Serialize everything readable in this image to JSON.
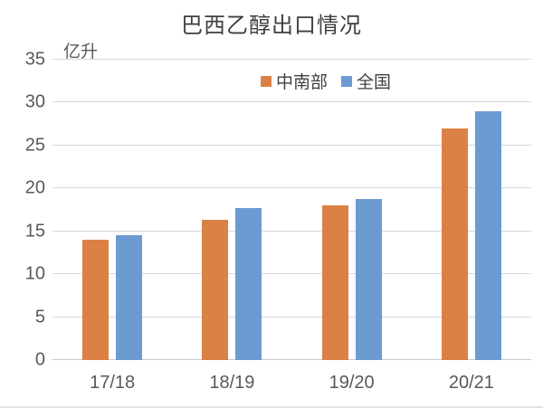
{
  "chart": {
    "title": "巴西乙醇出口情况",
    "unit_label": "亿升"
  },
  "chart_data": {
    "type": "bar",
    "title": "巴西乙醇出口情况",
    "xlabel": "",
    "ylabel": "亿升",
    "categories": [
      "17/18",
      "18/19",
      "19/20",
      "20/21"
    ],
    "series": [
      {
        "name": "中南部",
        "color": "#DC8145",
        "values": [
          14.0,
          16.3,
          18.0,
          27.0
        ]
      },
      {
        "name": "全国",
        "color": "#6C9BD2",
        "values": [
          14.5,
          17.7,
          18.8,
          29.0
        ]
      }
    ],
    "ylim": [
      0,
      35
    ],
    "yticks": [
      0,
      5,
      10,
      15,
      20,
      25,
      30,
      35
    ],
    "grid": true,
    "legend_position": "top-inside"
  },
  "colors": {
    "gridline": "#D8D8D8",
    "axis_text": "#595959",
    "title_text": "#3F3F3F",
    "background": "#FFFFFF"
  }
}
